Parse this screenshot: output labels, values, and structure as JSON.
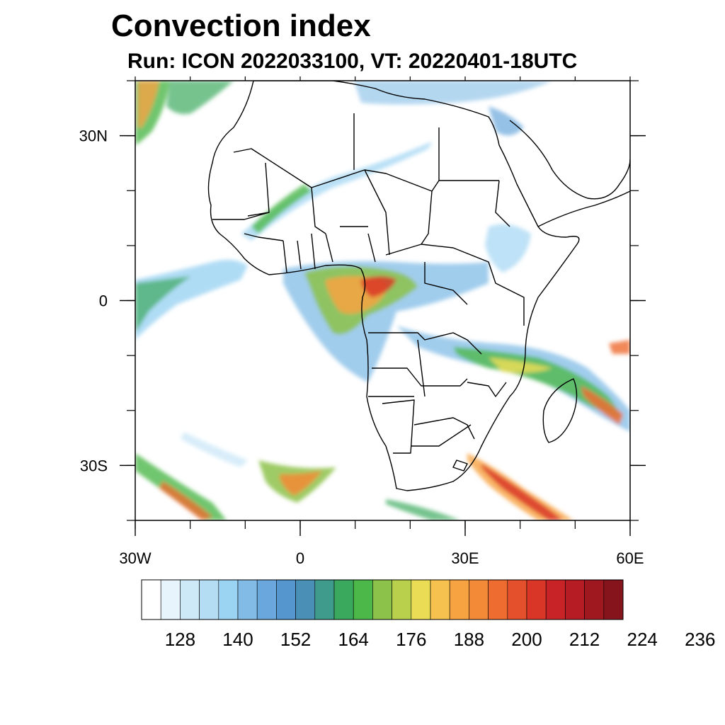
{
  "title": "Convection index",
  "subtitle": "Run: ICON 2022033100,  VT: 20220401-18UTC",
  "map": {
    "lon_range": [
      -30,
      60
    ],
    "lat_range": [
      -40,
      40
    ],
    "x_ticks": [
      {
        "lon": -30,
        "label": "30W"
      },
      {
        "lon": 0,
        "label": "0"
      },
      {
        "lon": 30,
        "label": "30E"
      },
      {
        "lon": 60,
        "label": "60E"
      }
    ],
    "y_ticks": [
      {
        "lat": 30,
        "label": "30N"
      },
      {
        "lat": 0,
        "label": "0"
      },
      {
        "lat": -30,
        "label": "30S"
      }
    ],
    "minor_lon_step": 10,
    "minor_lat_step": 10
  },
  "colorbar": {
    "colors": [
      "#ffffff",
      "#e8f4fc",
      "#cde8f7",
      "#b4ddf4",
      "#9bd3f2",
      "#82bce6",
      "#6aa7dc",
      "#5596cf",
      "#4a8fb6",
      "#3f9b8b",
      "#3aa95e",
      "#4cb84a",
      "#8dc24a",
      "#b9d04d",
      "#eadd55",
      "#f6c14f",
      "#f7a342",
      "#f38a37",
      "#ee6c30",
      "#e4502b",
      "#d93628",
      "#c82326",
      "#b61c24",
      "#9f1820",
      "#85141c"
    ],
    "labels": [
      "128",
      "140",
      "152",
      "164",
      "176",
      "188",
      "200",
      "212",
      "224",
      "236"
    ],
    "label_start_index": 2,
    "label_every": 3
  }
}
